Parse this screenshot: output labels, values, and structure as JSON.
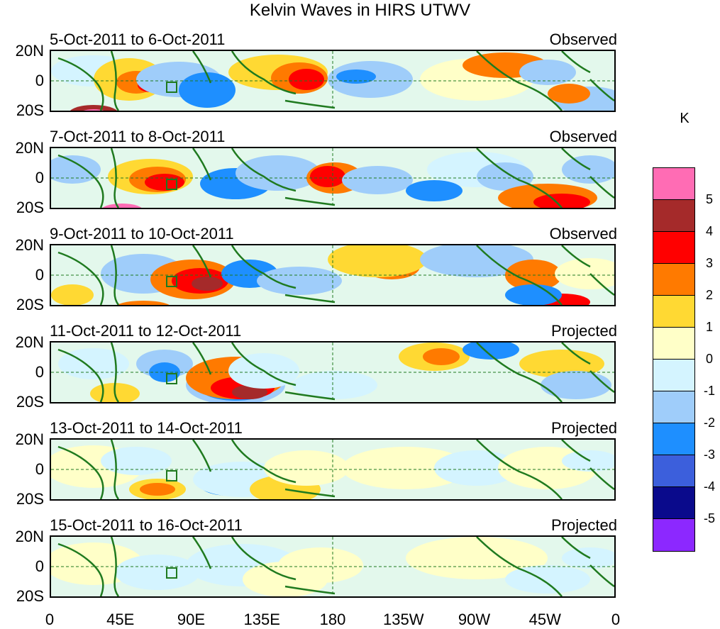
{
  "title": "Kelvin Waves in HIRS UTWV",
  "panels": [
    {
      "date_range": "5-Oct-2011 to 6-Oct-2011",
      "status": "Observed"
    },
    {
      "date_range": "7-Oct-2011 to 8-Oct-2011",
      "status": "Observed"
    },
    {
      "date_range": "9-Oct-2011 to 10-Oct-2011",
      "status": "Observed"
    },
    {
      "date_range": "11-Oct-2011 to 12-Oct-2011",
      "status": "Projected"
    },
    {
      "date_range": "13-Oct-2011 to 14-Oct-2011",
      "status": "Projected"
    },
    {
      "date_range": "15-Oct-2011 to 16-Oct-2011",
      "status": "Projected"
    }
  ],
  "lat_labels": [
    "20N",
    "0",
    "20S"
  ],
  "lon_labels": [
    "0",
    "45E",
    "90E",
    "135E",
    "180",
    "135W",
    "90W",
    "45W",
    "0"
  ],
  "colorbar": {
    "unit": "K",
    "labels": [
      "5",
      "4",
      "3",
      "2",
      "1",
      "0",
      "-1",
      "-2",
      "-3",
      "-4",
      "-5"
    ],
    "colors": [
      "#ff6cb4",
      "#a52a2a",
      "#ff0000",
      "#ff7a00",
      "#ffd933",
      "#ffffc8",
      "#d4f4ff",
      "#9fcdfa",
      "#1e8fff",
      "#3c5fdc",
      "#0a0a8c",
      "#8c28ff"
    ]
  }
}
